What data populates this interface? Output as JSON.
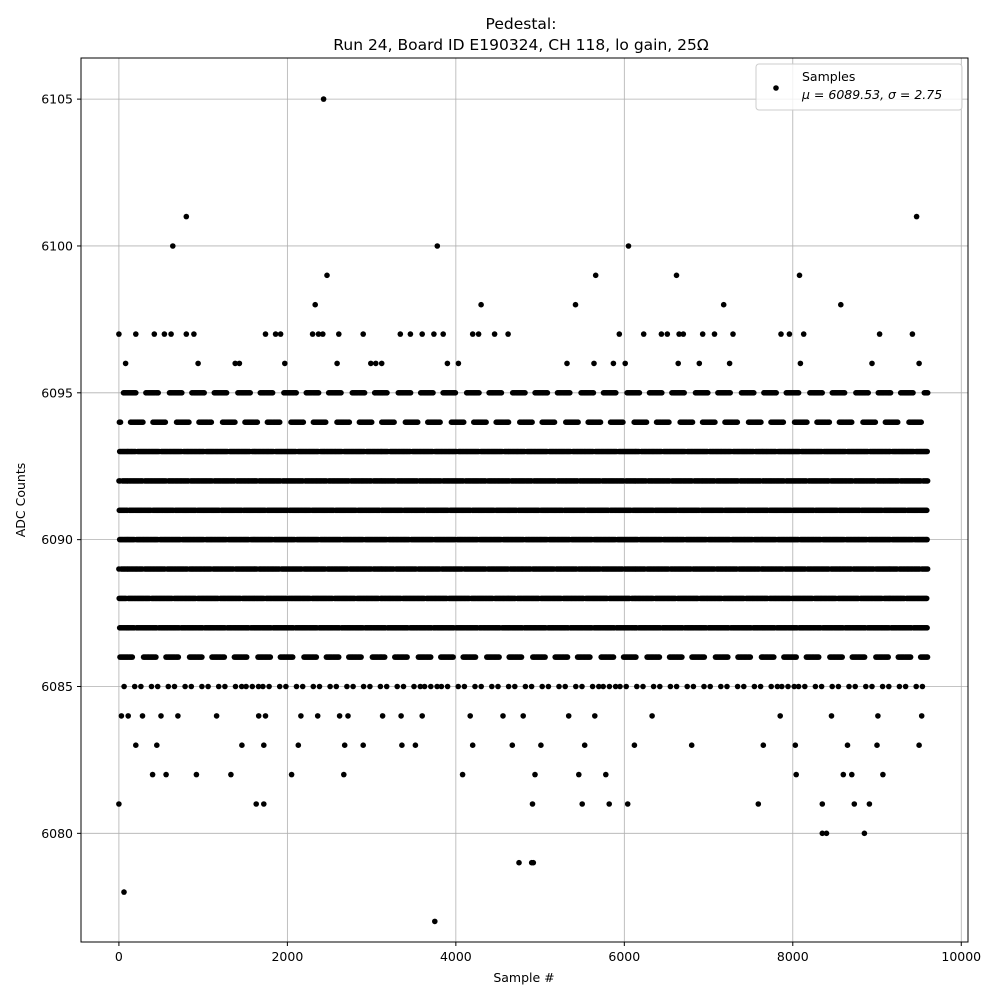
{
  "figure": {
    "title_line1": "Pedestal:",
    "title_line2": "Run 24, Board ID E190324, CH 118, lo gain, 25Ω"
  },
  "chart_data": {
    "type": "scatter",
    "title": "Pedestal:\nRun 24, Board ID E190324, CH 118, lo gain, 25Ω",
    "xlabel": "Sample #",
    "ylabel": "ADC Counts",
    "xlim": [
      -450,
      10080
    ],
    "ylim": [
      6076.3,
      6106.4
    ],
    "x_ticks": [
      0,
      2000,
      4000,
      6000,
      8000,
      10000
    ],
    "y_ticks": [
      6080,
      6085,
      6090,
      6095,
      6100,
      6105
    ],
    "grid": true,
    "legend_placement": "top-right",
    "marker_color": "#000000",
    "n_samples": 9600,
    "levels": [
      6086,
      6087,
      6088,
      6089,
      6090,
      6091,
      6092,
      6093,
      6094,
      6095
    ],
    "series": [
      {
        "name": "Samples",
        "stats_label": "μ = 6089.53, σ = 2.75",
        "points": [
          [
            0,
            6081
          ],
          [
            60,
            6078
          ],
          [
            3750,
            6077
          ],
          [
            4750,
            6079
          ],
          [
            4900,
            6079
          ],
          [
            4920,
            6079
          ],
          [
            2430,
            6105
          ],
          [
            800,
            6101
          ],
          [
            9470,
            6101
          ],
          [
            640,
            6100
          ],
          [
            3780,
            6100
          ],
          [
            6050,
            6100
          ],
          [
            2470,
            6099
          ],
          [
            5660,
            6099
          ],
          [
            6620,
            6099
          ],
          [
            8080,
            6099
          ],
          [
            2330,
            6098
          ],
          [
            4300,
            6098
          ],
          [
            5420,
            6098
          ],
          [
            7180,
            6098
          ],
          [
            8570,
            6098
          ],
          [
            8350,
            6080
          ],
          [
            8400,
            6080
          ],
          [
            8850,
            6080
          ],
          [
            0,
            6097
          ],
          [
            200,
            6097
          ],
          [
            420,
            6097
          ],
          [
            540,
            6097
          ],
          [
            620,
            6097
          ],
          [
            800,
            6097
          ],
          [
            890,
            6097
          ],
          [
            1740,
            6097
          ],
          [
            1860,
            6097
          ],
          [
            1920,
            6097
          ],
          [
            2300,
            6097
          ],
          [
            2370,
            6097
          ],
          [
            2420,
            6097
          ],
          [
            2610,
            6097
          ],
          [
            2900,
            6097
          ],
          [
            3340,
            6097
          ],
          [
            3460,
            6097
          ],
          [
            3600,
            6097
          ],
          [
            3740,
            6097
          ],
          [
            3850,
            6097
          ],
          [
            4200,
            6097
          ],
          [
            4270,
            6097
          ],
          [
            4460,
            6097
          ],
          [
            4620,
            6097
          ],
          [
            5940,
            6097
          ],
          [
            6230,
            6097
          ],
          [
            6440,
            6097
          ],
          [
            6510,
            6097
          ],
          [
            6650,
            6097
          ],
          [
            6700,
            6097
          ],
          [
            6930,
            6097
          ],
          [
            7070,
            6097
          ],
          [
            7290,
            6097
          ],
          [
            7860,
            6097
          ],
          [
            7960,
            6097
          ],
          [
            8130,
            6097
          ],
          [
            9030,
            6097
          ],
          [
            9420,
            6097
          ],
          [
            80,
            6096
          ],
          [
            940,
            6096
          ],
          [
            1380,
            6096
          ],
          [
            1430,
            6096
          ],
          [
            1970,
            6096
          ],
          [
            2590,
            6096
          ],
          [
            2990,
            6096
          ],
          [
            3050,
            6096
          ],
          [
            3120,
            6096
          ],
          [
            3900,
            6096
          ],
          [
            4030,
            6096
          ],
          [
            5320,
            6096
          ],
          [
            5640,
            6096
          ],
          [
            5870,
            6096
          ],
          [
            6010,
            6096
          ],
          [
            6640,
            6096
          ],
          [
            6890,
            6096
          ],
          [
            7250,
            6096
          ],
          [
            8090,
            6096
          ],
          [
            8940,
            6096
          ],
          [
            9500,
            6096
          ],
          [
            30,
            6084
          ],
          [
            110,
            6084
          ],
          [
            280,
            6084
          ],
          [
            500,
            6084
          ],
          [
            700,
            6084
          ],
          [
            1160,
            6084
          ],
          [
            1660,
            6084
          ],
          [
            1740,
            6084
          ],
          [
            2160,
            6084
          ],
          [
            2360,
            6084
          ],
          [
            2620,
            6084
          ],
          [
            2720,
            6084
          ],
          [
            3130,
            6084
          ],
          [
            3350,
            6084
          ],
          [
            3600,
            6084
          ],
          [
            4170,
            6084
          ],
          [
            4560,
            6084
          ],
          [
            4800,
            6084
          ],
          [
            5340,
            6084
          ],
          [
            5650,
            6084
          ],
          [
            6330,
            6084
          ],
          [
            7850,
            6084
          ],
          [
            8460,
            6084
          ],
          [
            9010,
            6084
          ],
          [
            9530,
            6084
          ],
          [
            200,
            6083
          ],
          [
            450,
            6083
          ],
          [
            1460,
            6083
          ],
          [
            1720,
            6083
          ],
          [
            2130,
            6083
          ],
          [
            2680,
            6083
          ],
          [
            2900,
            6083
          ],
          [
            3360,
            6083
          ],
          [
            3520,
            6083
          ],
          [
            4200,
            6083
          ],
          [
            4670,
            6083
          ],
          [
            5010,
            6083
          ],
          [
            5530,
            6083
          ],
          [
            6120,
            6083
          ],
          [
            6800,
            6083
          ],
          [
            7650,
            6083
          ],
          [
            8030,
            6083
          ],
          [
            8650,
            6083
          ],
          [
            9000,
            6083
          ],
          [
            9500,
            6083
          ],
          [
            400,
            6082
          ],
          [
            560,
            6082
          ],
          [
            920,
            6082
          ],
          [
            1330,
            6082
          ],
          [
            2050,
            6082
          ],
          [
            2670,
            6082
          ],
          [
            4080,
            6082
          ],
          [
            4940,
            6082
          ],
          [
            5460,
            6082
          ],
          [
            5780,
            6082
          ],
          [
            8040,
            6082
          ],
          [
            8600,
            6082
          ],
          [
            8700,
            6082
          ],
          [
            9070,
            6082
          ],
          [
            1630,
            6081
          ],
          [
            1720,
            6081
          ],
          [
            4910,
            6081
          ],
          [
            5500,
            6081
          ],
          [
            5820,
            6081
          ],
          [
            6040,
            6081
          ],
          [
            7590,
            6081
          ],
          [
            8350,
            6081
          ],
          [
            8730,
            6081
          ],
          [
            8910,
            6081
          ]
        ]
      }
    ]
  }
}
